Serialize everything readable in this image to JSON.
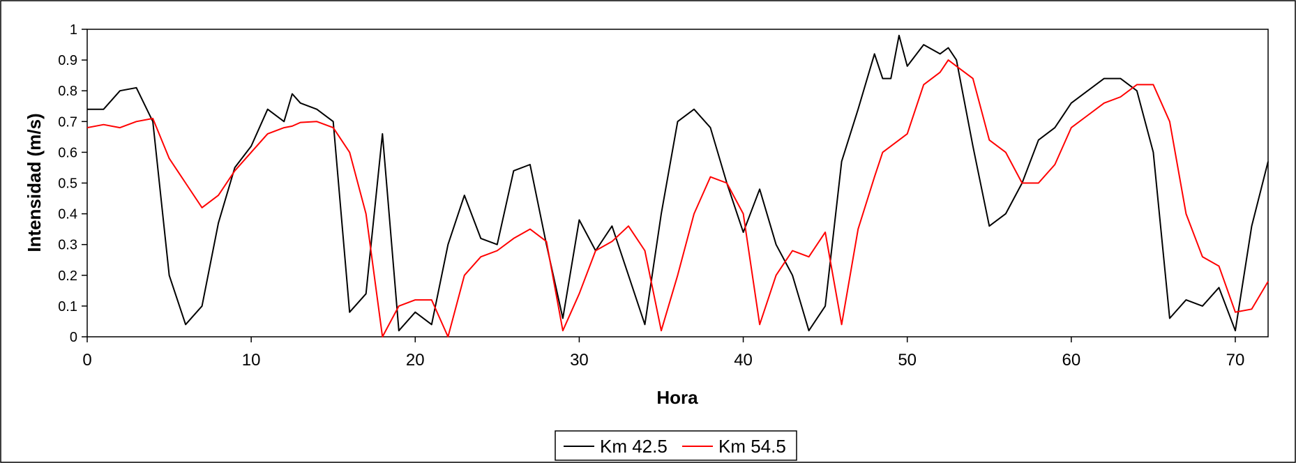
{
  "chart_data": {
    "type": "line",
    "xlabel": "Hora",
    "ylabel": "Intensidad (m/s)",
    "xlim": [
      0,
      72
    ],
    "ylim": [
      0,
      1
    ],
    "x_ticks": [
      0,
      10,
      20,
      30,
      40,
      50,
      60,
      70
    ],
    "y_ticks": [
      0,
      0.1,
      0.2,
      0.3,
      0.4,
      0.5,
      0.6,
      0.7,
      0.8,
      0.9,
      1
    ],
    "y_tick_labels": [
      "0",
      "0.1",
      "0.2",
      "0.3",
      "0.4",
      "0.5",
      "0.6",
      "0.7",
      "0.8",
      "0.9",
      "1"
    ],
    "x_tick_labels": [
      "0",
      "10",
      "20",
      "30",
      "40",
      "50",
      "60",
      "70"
    ],
    "grid": false,
    "legend_position": "bottom-center",
    "series": [
      {
        "name": "Km 42.5",
        "color": "#000000",
        "points": [
          [
            0,
            0.74
          ],
          [
            1,
            0.74
          ],
          [
            2,
            0.8
          ],
          [
            3,
            0.81
          ],
          [
            4,
            0.7
          ],
          [
            5,
            0.2
          ],
          [
            6,
            0.04
          ],
          [
            7,
            0.1
          ],
          [
            8,
            0.37
          ],
          [
            9,
            0.55
          ],
          [
            10,
            0.62
          ],
          [
            11,
            0.74
          ],
          [
            12,
            0.7
          ],
          [
            12.5,
            0.79
          ],
          [
            13,
            0.76
          ],
          [
            14,
            0.74
          ],
          [
            15,
            0.7
          ],
          [
            16,
            0.08
          ],
          [
            17,
            0.14
          ],
          [
            18,
            0.66
          ],
          [
            19,
            0.02
          ],
          [
            20,
            0.08
          ],
          [
            21,
            0.04
          ],
          [
            22,
            0.3
          ],
          [
            23,
            0.46
          ],
          [
            24,
            0.32
          ],
          [
            25,
            0.3
          ],
          [
            26,
            0.54
          ],
          [
            27,
            0.56
          ],
          [
            28,
            0.3
          ],
          [
            29,
            0.06
          ],
          [
            30,
            0.38
          ],
          [
            31,
            0.28
          ],
          [
            32,
            0.36
          ],
          [
            33,
            0.2
          ],
          [
            34,
            0.04
          ],
          [
            35,
            0.4
          ],
          [
            36,
            0.7
          ],
          [
            37,
            0.74
          ],
          [
            38,
            0.68
          ],
          [
            39,
            0.5
          ],
          [
            40,
            0.34
          ],
          [
            41,
            0.48
          ],
          [
            42,
            0.3
          ],
          [
            43,
            0.2
          ],
          [
            44,
            0.02
          ],
          [
            45,
            0.1
          ],
          [
            46,
            0.57
          ],
          [
            47,
            0.74
          ],
          [
            48,
            0.92
          ],
          [
            48.5,
            0.84
          ],
          [
            49,
            0.84
          ],
          [
            49.5,
            0.98
          ],
          [
            50,
            0.88
          ],
          [
            51,
            0.95
          ],
          [
            52,
            0.92
          ],
          [
            52.5,
            0.94
          ],
          [
            53,
            0.9
          ],
          [
            54,
            0.62
          ],
          [
            55,
            0.36
          ],
          [
            56,
            0.4
          ],
          [
            57,
            0.5
          ],
          [
            58,
            0.64
          ],
          [
            59,
            0.68
          ],
          [
            60,
            0.76
          ],
          [
            61,
            0.8
          ],
          [
            62,
            0.84
          ],
          [
            63,
            0.84
          ],
          [
            64,
            0.8
          ],
          [
            65,
            0.6
          ],
          [
            66,
            0.06
          ],
          [
            67,
            0.12
          ],
          [
            68,
            0.1
          ],
          [
            69,
            0.16
          ],
          [
            70,
            0.02
          ],
          [
            71,
            0.36
          ],
          [
            72,
            0.57
          ]
        ]
      },
      {
        "name": "Km 54.5",
        "color": "#ff0000",
        "points": [
          [
            0,
            0.68
          ],
          [
            1,
            0.69
          ],
          [
            2,
            0.68
          ],
          [
            3,
            0.7
          ],
          [
            4,
            0.71
          ],
          [
            5,
            0.58
          ],
          [
            6,
            0.5
          ],
          [
            7,
            0.42
          ],
          [
            8,
            0.46
          ],
          [
            9,
            0.54
          ],
          [
            10,
            0.6
          ],
          [
            11,
            0.66
          ],
          [
            12,
            0.68
          ],
          [
            12.5,
            0.685
          ],
          [
            13,
            0.697
          ],
          [
            14,
            0.7
          ],
          [
            15,
            0.68
          ],
          [
            16,
            0.6
          ],
          [
            17,
            0.4
          ],
          [
            18,
            0.0
          ],
          [
            19,
            0.1
          ],
          [
            20,
            0.12
          ],
          [
            21,
            0.12
          ],
          [
            22,
            0.0
          ],
          [
            23,
            0.2
          ],
          [
            24,
            0.26
          ],
          [
            25,
            0.28
          ],
          [
            26,
            0.32
          ],
          [
            27,
            0.35
          ],
          [
            28,
            0.31
          ],
          [
            29,
            0.02
          ],
          [
            30,
            0.14
          ],
          [
            31,
            0.28
          ],
          [
            32,
            0.31
          ],
          [
            33,
            0.36
          ],
          [
            34,
            0.28
          ],
          [
            35,
            0.02
          ],
          [
            36,
            0.2
          ],
          [
            37,
            0.4
          ],
          [
            38,
            0.52
          ],
          [
            39,
            0.5
          ],
          [
            40,
            0.4
          ],
          [
            41,
            0.04
          ],
          [
            42,
            0.2
          ],
          [
            43,
            0.28
          ],
          [
            44,
            0.26
          ],
          [
            45,
            0.34
          ],
          [
            46,
            0.04
          ],
          [
            47,
            0.35
          ],
          [
            48,
            0.52
          ],
          [
            48.5,
            0.6
          ],
          [
            50,
            0.66
          ],
          [
            51,
            0.82
          ],
          [
            52,
            0.86
          ],
          [
            52.5,
            0.9
          ],
          [
            53,
            0.88
          ],
          [
            54,
            0.84
          ],
          [
            55,
            0.64
          ],
          [
            56,
            0.6
          ],
          [
            57,
            0.5
          ],
          [
            58,
            0.5
          ],
          [
            59,
            0.56
          ],
          [
            60,
            0.68
          ],
          [
            61,
            0.72
          ],
          [
            62,
            0.76
          ],
          [
            63,
            0.78
          ],
          [
            64,
            0.82
          ],
          [
            65,
            0.82
          ],
          [
            66,
            0.7
          ],
          [
            67,
            0.4
          ],
          [
            68,
            0.26
          ],
          [
            69,
            0.23
          ],
          [
            70,
            0.08
          ],
          [
            71,
            0.09
          ],
          [
            72,
            0.18
          ]
        ]
      }
    ]
  }
}
